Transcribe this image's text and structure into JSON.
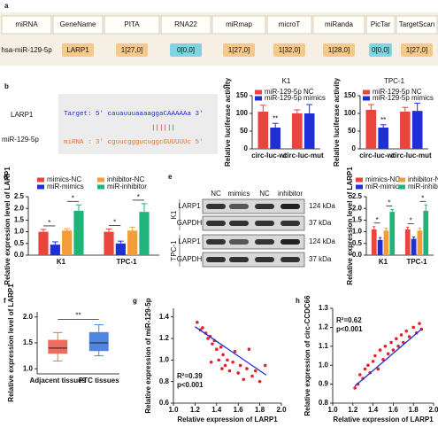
{
  "table": {
    "label": "a",
    "header": [
      "miRNA",
      "GeneName",
      "PITA",
      "RNA22",
      "miRmap",
      "microT",
      "miRanda",
      "PicTar",
      "TargetScan"
    ],
    "row": [
      "hsa-miR-129-5p",
      "LARP1",
      "1[27,0]",
      "0[0,0]",
      "1[27,0]",
      "1[32,0]",
      "1[28,0]",
      "0[0,0]",
      "1[27,0]"
    ],
    "cell_colors": [
      null,
      "#f6c98b",
      "#f6c98b",
      "#7fd5e0",
      "#f6c98b",
      "#f6c98b",
      "#f6c98b",
      "#7fd5e0",
      "#f6c98b"
    ]
  },
  "alignment": {
    "label": "b",
    "names": [
      "LARP1",
      "miR-129-5p"
    ],
    "target": "Target: 5' cauauuuaaaaggaCAAAAAa 3'",
    "pairs": "||||||",
    "mirna": "miRNA : 3' cguucgggucuggcGUUUUUc 5'"
  },
  "blot": {
    "label": "e",
    "lanes": [
      "NC",
      "mimics",
      "NC",
      "inhibitor"
    ],
    "groups": [
      "K1",
      "TPC-1"
    ],
    "bands": [
      "LARP1",
      "GAPDH"
    ],
    "sizes": [
      "124 kDa",
      "37 kDa"
    ]
  },
  "chart_data": [
    {
      "type": "bar",
      "panel": "c",
      "title": "K1",
      "ylabel": "Relative luciferase activity",
      "categories": [
        "circ-luc-wt",
        "circ-luc-mut"
      ],
      "series": [
        {
          "name": "miR-129-5p NC",
          "color": "#e8453c",
          "values": [
            105,
            100
          ],
          "errors": [
            18,
            10
          ]
        },
        {
          "name": "miR-129-5p mimics",
          "color": "#1f2fd6",
          "values": [
            60,
            100
          ],
          "errors": [
            12,
            25
          ],
          "annotations": [
            "**",
            null
          ]
        }
      ],
      "ylim": [
        0,
        150
      ],
      "yticks": [
        0,
        50,
        100,
        150
      ]
    },
    {
      "type": "bar",
      "title": "TPC-1",
      "ylabel": "Relative luciferase activity",
      "categories": [
        "circ-luc-wt",
        "circ-luc-mut"
      ],
      "series": [
        {
          "name": "miR-129-5p NC",
          "color": "#e8453c",
          "values": [
            110,
            105
          ],
          "errors": [
            15,
            12
          ]
        },
        {
          "name": "miR-129-5p mimics",
          "color": "#1f2fd6",
          "values": [
            60,
            107
          ],
          "errors": [
            8,
            22
          ],
          "annotations": [
            "**",
            null
          ]
        }
      ],
      "ylim": [
        0,
        150
      ],
      "yticks": [
        0,
        50,
        100,
        150
      ]
    },
    {
      "type": "bar",
      "panel": "d",
      "ylabel": "Relative expression level of LARP1",
      "categories": [
        "K1",
        "TPC-1"
      ],
      "brackets": true,
      "series": [
        {
          "name": "mimics-NC",
          "color": "#e8453c",
          "values": [
            1.0,
            1.0
          ],
          "errors": [
            0.1,
            0.12
          ]
        },
        {
          "name": "miR-mimics",
          "color": "#1f2fd6",
          "values": [
            0.45,
            0.5
          ],
          "errors": [
            0.12,
            0.1
          ],
          "annotations": [
            "*",
            "*"
          ]
        },
        {
          "name": "inhibitor-NC",
          "color": "#f39c3a",
          "values": [
            1.05,
            1.05
          ],
          "errors": [
            0.08,
            0.15
          ]
        },
        {
          "name": "miR-inhibitor",
          "color": "#1fb57a",
          "values": [
            1.9,
            1.85
          ],
          "errors": [
            0.25,
            0.35
          ],
          "annotations": [
            "*",
            "*"
          ]
        }
      ],
      "ylim": [
        0,
        2.5
      ],
      "yticks": [
        {
          "value": 0,
          "label": "0.0"
        },
        0.5,
        {
          "value": 1,
          "label": "1.0"
        },
        1.5,
        {
          "value": 2,
          "label": "2.0"
        },
        2.5
      ]
    },
    {
      "type": "bar",
      "ylabel": "Relative expression level of LARP1",
      "categories": [
        "K1",
        "TPC-1"
      ],
      "brackets": true,
      "series": [
        {
          "name": "mimics-NC",
          "color": "#e8453c",
          "values": [
            1.1,
            1.1
          ],
          "errors": [
            0.12,
            0.1
          ]
        },
        {
          "name": "miR-mimics",
          "color": "#1f2fd6",
          "values": [
            0.65,
            0.7
          ],
          "errors": [
            0.1,
            0.08
          ],
          "annotations": [
            "*",
            "*"
          ]
        },
        {
          "name": "inhibitor-NC",
          "color": "#f39c3a",
          "values": [
            1.05,
            1.05
          ],
          "errors": [
            0.1,
            0.1
          ]
        },
        {
          "name": "miR-inhibitor",
          "color": "#1fb57a",
          "values": [
            1.85,
            1.9
          ],
          "errors": [
            0.1,
            0.25
          ],
          "annotations": [
            "*",
            "*"
          ]
        }
      ],
      "ylim": [
        0,
        2.5
      ],
      "yticks": [
        {
          "value": 0,
          "label": "0.0"
        },
        0.5,
        {
          "value": 1,
          "label": "1.0"
        },
        1.5,
        {
          "value": 2,
          "label": "2.0"
        },
        2.5
      ]
    },
    {
      "type": "box",
      "panel": "f",
      "ylabel": "Relative expression level of LARP1",
      "categories": [
        "Adjacent tissues",
        "PTC tissues"
      ],
      "boxes": [
        {
          "min": 1.15,
          "q1": 1.3,
          "median": 1.4,
          "q3": 1.55,
          "max": 1.7
        },
        {
          "min": 1.25,
          "q1": 1.35,
          "median": 1.5,
          "q3": 1.7,
          "max": 1.85
        }
      ],
      "colors": [
        "#ef6a5f",
        "#4f86e0"
      ],
      "annotations": [
        "**"
      ],
      "ylim": [
        0.9,
        2.1
      ],
      "yticks": [
        {
          "value": 1,
          "label": "1.0"
        },
        1.5,
        {
          "value": 2,
          "label": "2.0"
        }
      ]
    },
    {
      "type": "scatter",
      "panel": "g",
      "xlabel": "Relative expression of LARP1",
      "ylabel": "Relative expression of miR-129-5p",
      "color": "#e8202a",
      "x": [
        1.22,
        1.25,
        1.27,
        1.3,
        1.32,
        1.34,
        1.36,
        1.38,
        1.4,
        1.42,
        1.44,
        1.46,
        1.48,
        1.5,
        1.52,
        1.55,
        1.57,
        1.6,
        1.62,
        1.65,
        1.68,
        1.7,
        1.73,
        1.76,
        1.8,
        1.85,
        1.35,
        1.45
      ],
      "values": [
        1.35,
        1.28,
        1.3,
        1.25,
        1.2,
        1.22,
        1.15,
        1.18,
        1.1,
        1.0,
        1.12,
        1.05,
        0.95,
        1.0,
        0.9,
        0.98,
        1.08,
        0.88,
        0.95,
        0.82,
        0.92,
        1.1,
        0.85,
        0.9,
        0.8,
        0.95,
        0.98,
        0.92
      ],
      "trendline": {
        "x": [
          1.2,
          1.86
        ],
        "y": [
          1.31,
          0.86
        ],
        "color": "#1f2fd6"
      },
      "annotations": [
        "R²=0.39",
        "p<0.001"
      ],
      "xlim": [
        1.0,
        2.0
      ],
      "xticks": [
        {
          "value": 1,
          "label": "1.0"
        },
        1.2,
        1.4,
        1.6,
        1.8,
        {
          "value": 2,
          "label": "2.0"
        }
      ],
      "ylim": [
        0.6,
        1.48
      ],
      "yticks": [
        0.6,
        0.8,
        {
          "value": 1,
          "label": "1.0"
        },
        1.2,
        1.4
      ]
    },
    {
      "type": "scatter",
      "panel": "h",
      "xlabel": "Relative expression of LARP1",
      "ylabel": "Relative expression of circ-CCDC66",
      "color": "#e8202a",
      "x": [
        1.22,
        1.25,
        1.27,
        1.3,
        1.32,
        1.35,
        1.37,
        1.4,
        1.42,
        1.45,
        1.47,
        1.5,
        1.52,
        1.55,
        1.58,
        1.6,
        1.63,
        1.65,
        1.68,
        1.7,
        1.73,
        1.76,
        1.8,
        1.83,
        1.86,
        1.88
      ],
      "values": [
        0.88,
        0.9,
        0.95,
        0.93,
        0.98,
        1.0,
        0.96,
        1.02,
        1.05,
        0.98,
        1.08,
        1.03,
        1.1,
        1.06,
        1.12,
        1.08,
        1.14,
        1.1,
        1.16,
        1.12,
        1.18,
        1.15,
        1.2,
        1.17,
        1.22,
        1.19
      ],
      "trendline": {
        "x": [
          1.22,
          1.88
        ],
        "y": [
          0.89,
          1.19
        ],
        "color": "#1f2fd6"
      },
      "annotations": [
        "R²=0.62",
        "p<0.001"
      ],
      "xlim": [
        1.0,
        2.0
      ],
      "xticks": [
        {
          "value": 1,
          "label": "1.0"
        },
        1.2,
        1.4,
        1.6,
        1.8,
        {
          "value": 2,
          "label": "2.0"
        }
      ],
      "ylim": [
        0.8,
        1.3
      ],
      "yticks": [
        0.8,
        0.9,
        {
          "value": 1,
          "label": "1.0"
        },
        1.1,
        1.2,
        1.3
      ]
    }
  ]
}
